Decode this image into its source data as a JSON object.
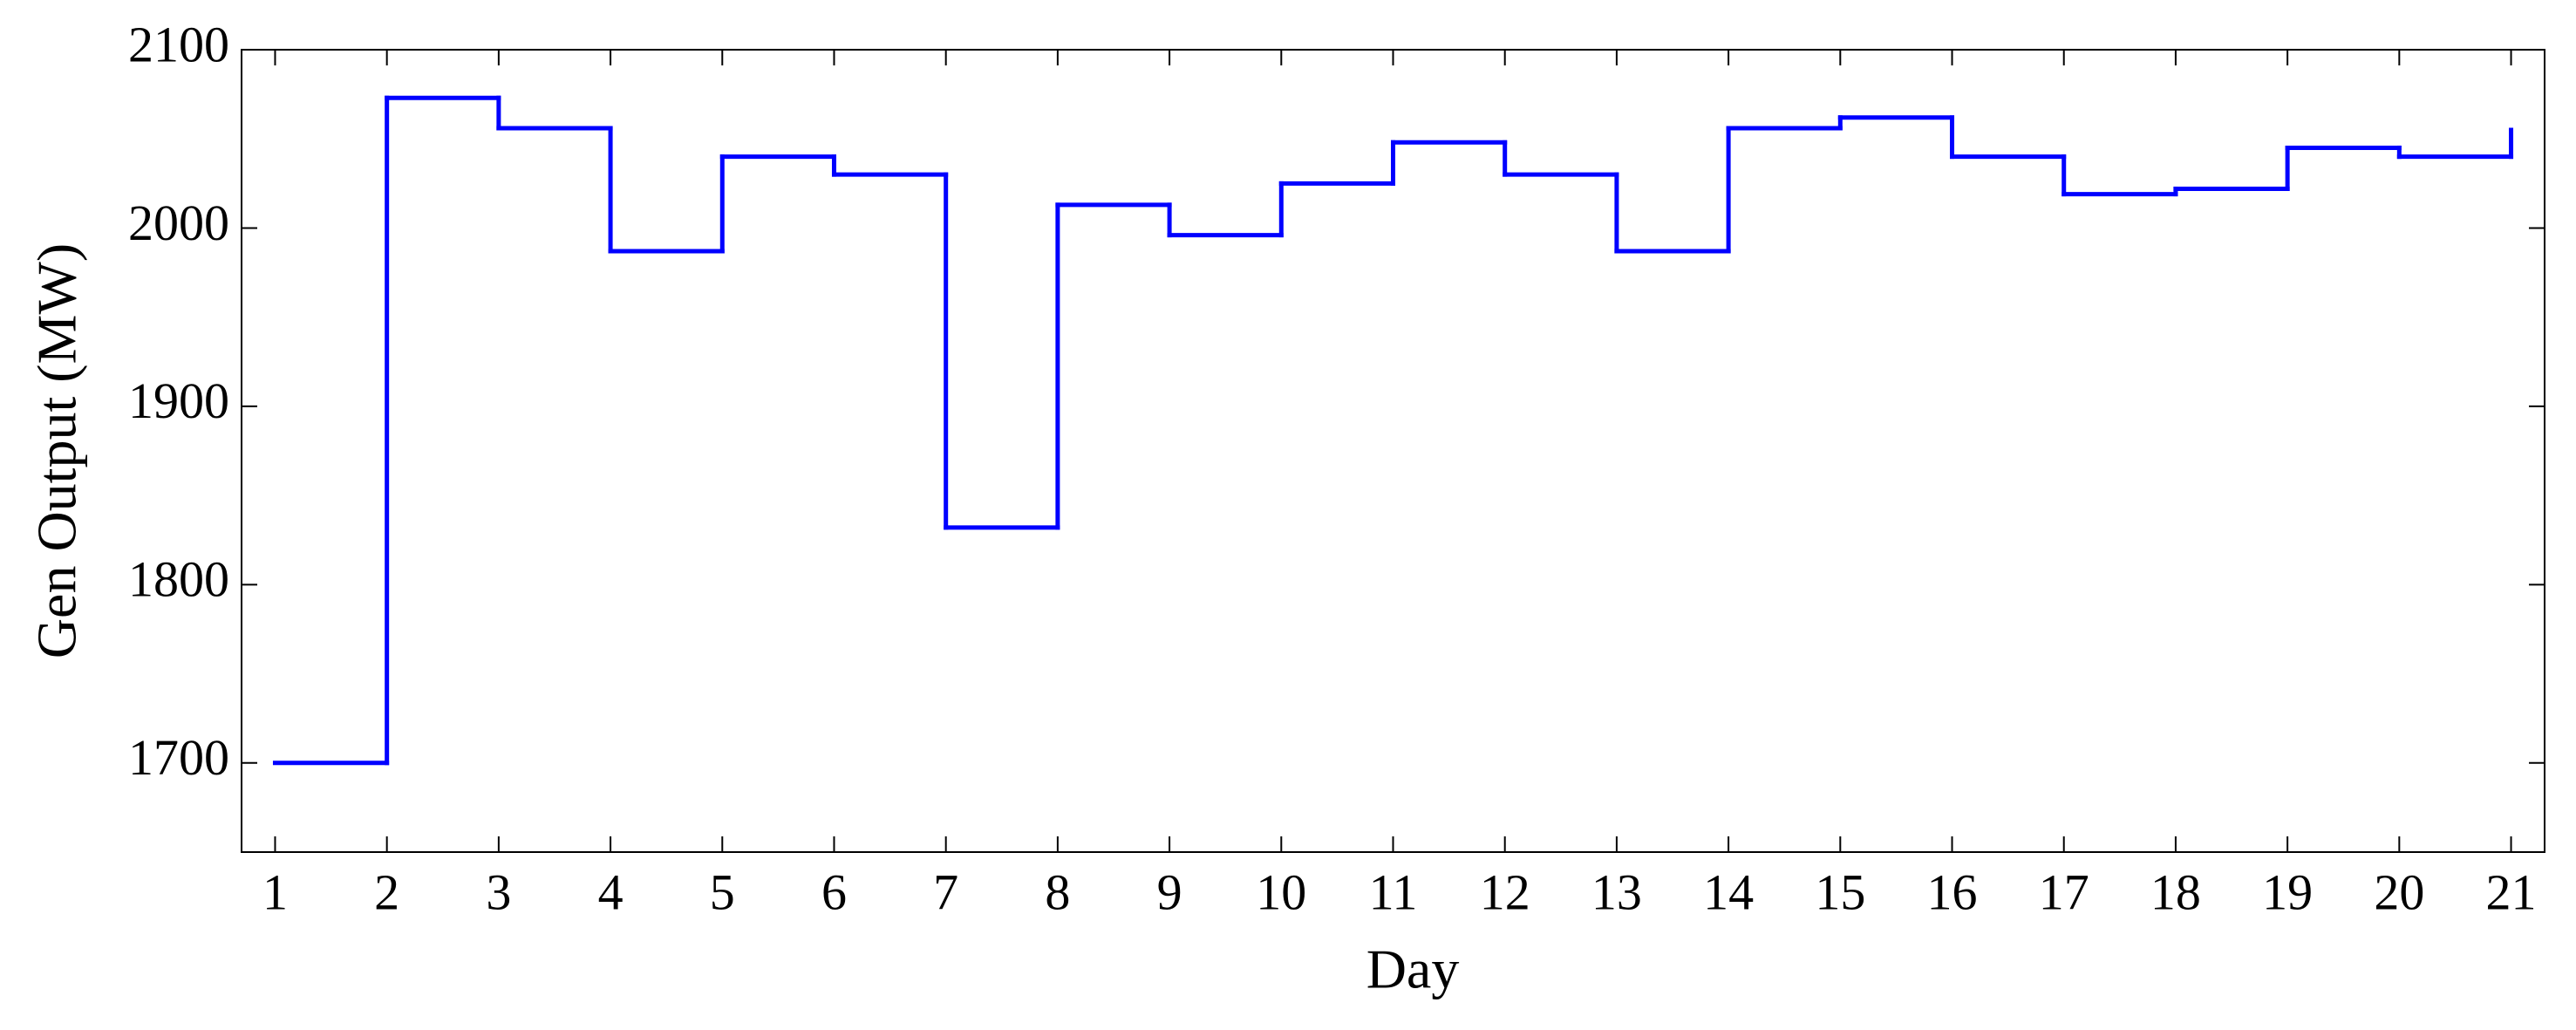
{
  "chart_data": {
    "type": "line",
    "step": "post",
    "xlabel": "Day",
    "ylabel": "Gen Output (MW)",
    "x": [
      1,
      2,
      3,
      4,
      5,
      6,
      7,
      8,
      9,
      10,
      11,
      12,
      13,
      14,
      15,
      16,
      17,
      18,
      19,
      20,
      21
    ],
    "series": [
      {
        "color": "#0000ff",
        "values": [
          1700,
          2073,
          2056,
          1987,
          2040,
          2030,
          1832,
          2013,
          1996,
          2025,
          2048,
          2030,
          1987,
          2056,
          2062,
          2040,
          2019,
          2022,
          2045,
          2040,
          2055
        ]
      }
    ],
    "xlim": [
      0.7,
      21.3
    ],
    "xticks": [
      1,
      2,
      3,
      4,
      5,
      6,
      7,
      8,
      9,
      10,
      11,
      12,
      13,
      14,
      15,
      16,
      17,
      18,
      19,
      20,
      21
    ],
    "ylim": [
      1650,
      2100
    ],
    "yticks": [
      1700,
      1800,
      1900,
      2000,
      2100
    ]
  }
}
